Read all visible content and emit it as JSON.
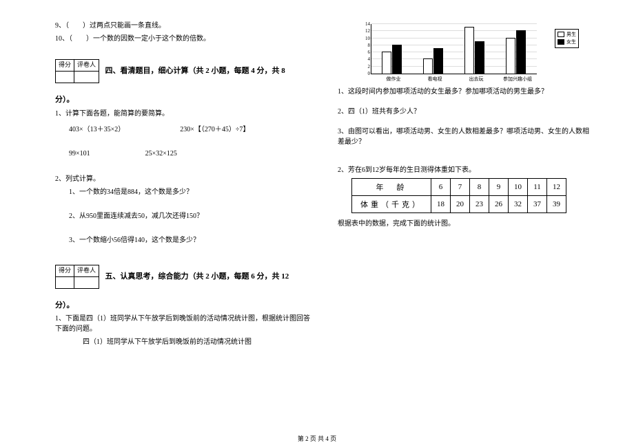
{
  "left": {
    "q9": "9、（　　）过两点只能画一条直线。",
    "q10": "10、（　　）一个数的因数一定小于这个数的倍数。",
    "scorebox": {
      "c1": "得分",
      "c2": "评卷人"
    },
    "sec4_title": "四、看清题目，细心计算（共 2 小题，每题 4 分，共 8",
    "sec4_tail": "分）。",
    "p1": "1、计算下面各题，能简算的要简算。",
    "calc": {
      "a1": "403×（13＋35×2）",
      "a2": "230×【（270＋45）÷7】",
      "b1": "99×101",
      "b2": "25×32×125"
    },
    "p2": "2、列式计算。",
    "p2_1": "1、一个数的34倍是884，这个数是多少？",
    "p2_2": "2、从950里面连续减去50，减几次还得150？",
    "p2_3": "3、一个数缩小56倍得140，这个数是多少？",
    "sec5_title": "五、认真思考，综合能力（共 2 小题，每题 6 分，共 12",
    "sec5_tail": "分）。",
    "q5_1": "1、下面是四（1）班同学从下午放学后到晚饭前的活动情况统计图，根据统计图回答下面的问题。",
    "q5_1_sub": "四（1）班同学从下午放学后到晚饭前的活动情况统计图"
  },
  "right": {
    "chart": {
      "ymax": 14,
      "ytick_step": 2,
      "categories": [
        "做作业",
        "看电视",
        "出去玩",
        "参加兴趣小组"
      ],
      "series": [
        {
          "name": "男生",
          "color": "#ffffff",
          "values": [
            6,
            4,
            13,
            10
          ]
        },
        {
          "name": "女生",
          "color": "#000000",
          "values": [
            8,
            7,
            9,
            12
          ]
        }
      ],
      "legend": [
        "男生",
        "女生"
      ]
    },
    "c1": "1、这段时间内参加哪项活动的女生最多？参加哪项活动的男生最多？",
    "c2": "2、四（1）班共有多少人？",
    "c3": "3、由图可以看出，哪项活动男、女生的人数相差最多？哪项活动男、女生的人数相差最少？",
    "q2": "2、芳在6到12岁每年的生日测得体重如下表。",
    "table": {
      "head": [
        "年　龄",
        "6",
        "7",
        "8",
        "9",
        "10",
        "11",
        "12"
      ],
      "row": [
        "体重（千克）",
        "18",
        "20",
        "23",
        "26",
        "32",
        "37",
        "39"
      ]
    },
    "tail": "根据表中的数据，完成下面的统计图。"
  },
  "footer": "第 2 页 共 4 页"
}
